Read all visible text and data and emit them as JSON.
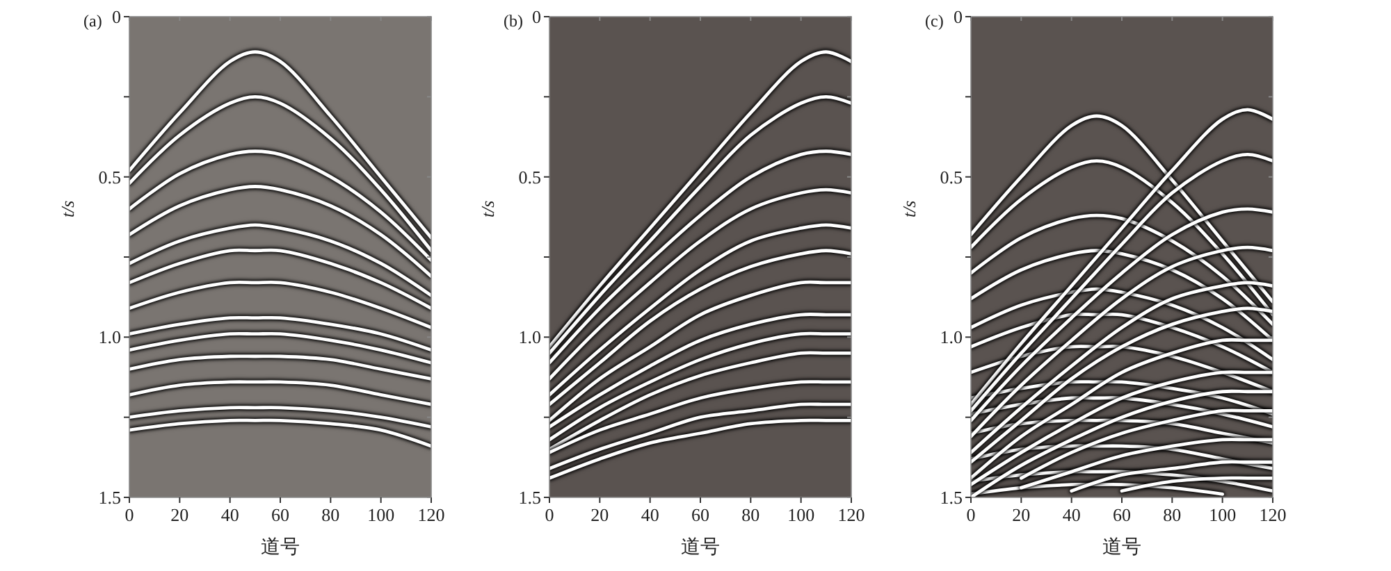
{
  "chart_data": [
    {
      "type": "line",
      "title": "(a)",
      "xlabel": "道号",
      "ylabel": "t/s",
      "xlim": [
        0,
        120
      ],
      "xticks": [
        0,
        20,
        40,
        60,
        80,
        100,
        120
      ],
      "ylim": [
        1.5,
        0
      ],
      "yticks": [
        0,
        {
          "value": 0.25,
          "label": null
        },
        0.5,
        {
          "value": 0.75,
          "label": null
        },
        {
          "value": 1,
          "label": "1.0"
        },
        {
          "value": 1.25,
          "label": null
        },
        1.5
      ],
      "grid": false,
      "marker": "none",
      "line_style": "solid",
      "x": [
        0,
        20,
        40,
        50,
        60,
        80,
        100,
        120
      ],
      "series": [
        {
          "color": "#ffffff",
          "values": [
            0.48,
            0.3,
            0.14,
            0.11,
            0.14,
            0.31,
            0.5,
            0.69
          ]
        },
        {
          "color": "#ffffff",
          "values": [
            0.52,
            0.37,
            0.27,
            0.25,
            0.27,
            0.38,
            0.54,
            0.73
          ]
        },
        {
          "color": "#ffffff",
          "values": [
            0.6,
            0.49,
            0.43,
            0.42,
            0.43,
            0.5,
            0.61,
            0.76
          ]
        },
        {
          "color": "#ffffff",
          "values": [
            0.68,
            0.59,
            0.54,
            0.53,
            0.54,
            0.59,
            0.68,
            0.81
          ]
        },
        {
          "color": "#ffffff",
          "values": [
            0.77,
            0.7,
            0.66,
            0.65,
            0.66,
            0.7,
            0.77,
            0.87
          ]
        },
        {
          "color": "#ffffff",
          "values": [
            0.83,
            0.77,
            0.73,
            0.73,
            0.73,
            0.77,
            0.83,
            0.91
          ]
        },
        {
          "color": "#ffffff",
          "values": [
            0.91,
            0.86,
            0.83,
            0.83,
            0.83,
            0.86,
            0.91,
            0.97
          ]
        },
        {
          "color": "#ffffff",
          "values": [
            0.99,
            0.96,
            0.94,
            0.94,
            0.94,
            0.96,
            0.99,
            1.04
          ]
        },
        {
          "color": "#ffffff",
          "values": [
            1.04,
            1.01,
            0.99,
            0.99,
            0.99,
            1.01,
            1.04,
            1.08
          ]
        },
        {
          "color": "#ffffff",
          "values": [
            1.1,
            1.07,
            1.06,
            1.06,
            1.06,
            1.07,
            1.1,
            1.13
          ]
        },
        {
          "color": "#ffffff",
          "values": [
            1.18,
            1.15,
            1.14,
            1.14,
            1.14,
            1.15,
            1.18,
            1.21
          ]
        },
        {
          "color": "#ffffff",
          "values": [
            1.25,
            1.23,
            1.22,
            1.22,
            1.22,
            1.23,
            1.25,
            1.28
          ]
        },
        {
          "color": "#ffffff",
          "values": [
            1.29,
            1.27,
            1.26,
            1.26,
            1.26,
            1.27,
            1.29,
            1.34
          ]
        }
      ]
    },
    {
      "type": "line",
      "title": "(b)",
      "xlabel": "道号",
      "ylabel": "t/s",
      "xlim": [
        0,
        120
      ],
      "xticks": [
        0,
        20,
        40,
        60,
        80,
        100,
        120
      ],
      "ylim": [
        1.5,
        0
      ],
      "yticks": [
        0,
        {
          "value": 0.25,
          "label": null
        },
        0.5,
        {
          "value": 0.75,
          "label": null
        },
        {
          "value": 1,
          "label": "1.0"
        },
        {
          "value": 1.25,
          "label": null
        },
        1.5
      ],
      "grid": false,
      "marker": "none",
      "line_style": "solid",
      "x": [
        0,
        20,
        40,
        60,
        80,
        100,
        110,
        120
      ],
      "series": [
        {
          "color": "#ffffff",
          "values": [
            1.03,
            0.84,
            0.66,
            0.48,
            0.3,
            0.14,
            0.11,
            0.14
          ]
        },
        {
          "color": "#ffffff",
          "values": [
            1.05,
            0.87,
            0.7,
            0.53,
            0.37,
            0.27,
            0.25,
            0.27
          ]
        },
        {
          "color": "#ffffff",
          "values": [
            1.08,
            0.91,
            0.76,
            0.62,
            0.5,
            0.43,
            0.42,
            0.43
          ]
        },
        {
          "color": "#ffffff",
          "values": [
            1.13,
            0.97,
            0.83,
            0.7,
            0.6,
            0.55,
            0.54,
            0.55
          ]
        },
        {
          "color": "#ffffff",
          "values": [
            1.18,
            1.04,
            0.91,
            0.79,
            0.7,
            0.66,
            0.65,
            0.66
          ]
        },
        {
          "color": "#ffffff",
          "values": [
            1.21,
            1.08,
            0.95,
            0.85,
            0.78,
            0.74,
            0.73,
            0.74
          ]
        },
        {
          "color": "#ffffff",
          "values": [
            1.26,
            1.13,
            1.03,
            0.93,
            0.87,
            0.83,
            0.83,
            0.83
          ]
        },
        {
          "color": "#ffffff",
          "values": [
            1.28,
            1.18,
            1.09,
            1.01,
            0.96,
            0.93,
            0.93,
            0.93
          ]
        },
        {
          "color": "#ffffff",
          "values": [
            1.32,
            1.22,
            1.14,
            1.07,
            1.02,
            0.99,
            0.99,
            0.99
          ]
        },
        {
          "color": "#ffffff",
          "values": [
            1.35,
            1.26,
            1.18,
            1.12,
            1.08,
            1.05,
            1.05,
            1.05
          ]
        },
        {
          "color": "#ffffff",
          "values": [
            1.36,
            1.29,
            1.24,
            1.19,
            1.16,
            1.14,
            1.14,
            1.14
          ]
        },
        {
          "color": "#ffffff",
          "values": [
            1.41,
            1.35,
            1.3,
            1.25,
            1.23,
            1.21,
            1.21,
            1.21
          ]
        },
        {
          "color": "#ffffff",
          "values": [
            1.44,
            1.38,
            1.33,
            1.3,
            1.27,
            1.26,
            1.26,
            1.26
          ]
        }
      ]
    },
    {
      "type": "line",
      "title": "(c)",
      "xlabel": "道号",
      "ylabel": "t/s",
      "xlim": [
        0,
        120
      ],
      "xticks": [
        0,
        20,
        40,
        60,
        80,
        100,
        120
      ],
      "ylim": [
        1.5,
        0
      ],
      "yticks": [
        0,
        {
          "value": 0.25,
          "label": null
        },
        0.5,
        {
          "value": 0.75,
          "label": null
        },
        {
          "value": 1,
          "label": "1.0"
        },
        {
          "value": 1.25,
          "label": null
        },
        1.5
      ],
      "grid": false,
      "marker": "none",
      "line_style": "solid",
      "x": [
        0,
        20,
        40,
        50,
        60,
        80,
        100,
        120
      ],
      "series": [
        {
          "color": "#ffffff",
          "values": [
            0.68,
            0.5,
            0.34,
            0.31,
            0.34,
            0.51,
            0.7,
            0.89
          ]
        },
        {
          "color": "#ffffff",
          "values": [
            0.72,
            0.57,
            0.47,
            0.45,
            0.47,
            0.58,
            0.74,
            0.93
          ]
        },
        {
          "color": "#ffffff",
          "values": [
            0.8,
            0.69,
            0.63,
            0.62,
            0.63,
            0.7,
            0.81,
            0.96
          ]
        },
        {
          "color": "#ffffff",
          "values": [
            0.88,
            0.79,
            0.74,
            0.73,
            0.74,
            0.79,
            0.88,
            1.01
          ]
        },
        {
          "color": "#ffffff",
          "values": [
            0.97,
            0.9,
            0.86,
            0.85,
            0.86,
            0.9,
            0.97,
            1.07
          ]
        },
        {
          "color": "#ffffff",
          "values": [
            1.03,
            0.97,
            0.93,
            0.93,
            0.93,
            0.97,
            1.03,
            1.11
          ]
        },
        {
          "color": "#ffffff",
          "values": [
            1.11,
            1.06,
            1.03,
            1.03,
            1.03,
            1.06,
            1.11,
            1.17
          ]
        },
        {
          "color": "#ffffff",
          "values": [
            1.19,
            1.16,
            1.14,
            1.14,
            1.14,
            1.16,
            1.19,
            1.24
          ]
        },
        {
          "color": "#ffffff",
          "values": [
            1.24,
            1.21,
            1.19,
            1.19,
            1.19,
            1.21,
            1.24,
            1.28
          ]
        },
        {
          "color": "#ffffff",
          "values": [
            1.3,
            1.27,
            1.26,
            1.26,
            1.26,
            1.27,
            1.3,
            1.33
          ]
        },
        {
          "color": "#ffffff",
          "values": [
            1.38,
            1.35,
            1.34,
            1.34,
            1.34,
            1.35,
            1.38,
            1.41
          ]
        },
        {
          "color": "#ffffff",
          "values": [
            1.45,
            1.43,
            1.42,
            1.42,
            1.42,
            1.43,
            1.45,
            1.48
          ]
        },
        {
          "color": "#ffffff",
          "x": [
            0,
            20,
            40,
            50,
            60,
            80,
            100
          ],
          "values": [
            1.49,
            1.47,
            1.46,
            1.46,
            1.46,
            1.47,
            1.49
          ]
        },
        {
          "color": "#ffffff",
          "x": [
            0,
            20,
            40,
            60,
            80,
            100,
            110,
            120
          ],
          "values": [
            1.21,
            1.02,
            0.84,
            0.66,
            0.48,
            0.32,
            0.29,
            0.32
          ]
        },
        {
          "color": "#ffffff",
          "x": [
            0,
            20,
            40,
            60,
            80,
            100,
            110,
            120
          ],
          "values": [
            1.23,
            1.05,
            0.88,
            0.71,
            0.55,
            0.45,
            0.43,
            0.45
          ]
        },
        {
          "color": "#ffffff",
          "x": [
            0,
            20,
            40,
            60,
            80,
            100,
            110,
            120
          ],
          "values": [
            1.26,
            1.09,
            0.94,
            0.8,
            0.68,
            0.61,
            0.6,
            0.61
          ]
        },
        {
          "color": "#ffffff",
          "x": [
            0,
            20,
            40,
            60,
            80,
            100,
            110,
            120
          ],
          "values": [
            1.31,
            1.15,
            1.01,
            0.88,
            0.78,
            0.73,
            0.72,
            0.73
          ]
        },
        {
          "color": "#ffffff",
          "x": [
            0,
            20,
            40,
            60,
            80,
            100,
            110,
            120
          ],
          "values": [
            1.36,
            1.22,
            1.09,
            0.97,
            0.88,
            0.84,
            0.83,
            0.84
          ]
        },
        {
          "color": "#ffffff",
          "x": [
            0,
            20,
            40,
            60,
            80,
            100,
            110,
            120
          ],
          "values": [
            1.39,
            1.26,
            1.13,
            1.03,
            0.96,
            0.92,
            0.91,
            0.92
          ]
        },
        {
          "color": "#ffffff",
          "x": [
            0,
            20,
            40,
            60,
            80,
            100,
            110,
            120
          ],
          "values": [
            1.44,
            1.31,
            1.21,
            1.11,
            1.05,
            1.01,
            1.01,
            1.01
          ]
        },
        {
          "color": "#ffffff",
          "x": [
            0,
            20,
            40,
            60,
            80,
            100,
            110,
            120
          ],
          "values": [
            1.46,
            1.36,
            1.27,
            1.19,
            1.14,
            1.11,
            1.11,
            1.11
          ]
        },
        {
          "color": "#ffffff",
          "x": [
            0,
            20,
            40,
            60,
            80,
            100,
            110,
            120
          ],
          "values": [
            1.5,
            1.4,
            1.32,
            1.25,
            1.2,
            1.17,
            1.17,
            1.17
          ]
        },
        {
          "color": "#ffffff",
          "x": [
            20,
            40,
            60,
            80,
            100,
            110,
            120
          ],
          "values": [
            1.44,
            1.36,
            1.3,
            1.26,
            1.23,
            1.23,
            1.23
          ]
        },
        {
          "color": "#ffffff",
          "x": [
            20,
            40,
            60,
            80,
            100,
            110,
            120
          ],
          "values": [
            1.47,
            1.42,
            1.37,
            1.34,
            1.32,
            1.32,
            1.32
          ]
        },
        {
          "color": "#ffffff",
          "x": [
            40,
            60,
            80,
            100,
            110,
            120
          ],
          "values": [
            1.48,
            1.43,
            1.41,
            1.39,
            1.39,
            1.39
          ]
        },
        {
          "color": "#ffffff",
          "x": [
            60,
            80,
            100,
            110,
            120
          ],
          "values": [
            1.48,
            1.45,
            1.44,
            1.44,
            1.44
          ]
        }
      ]
    }
  ]
}
